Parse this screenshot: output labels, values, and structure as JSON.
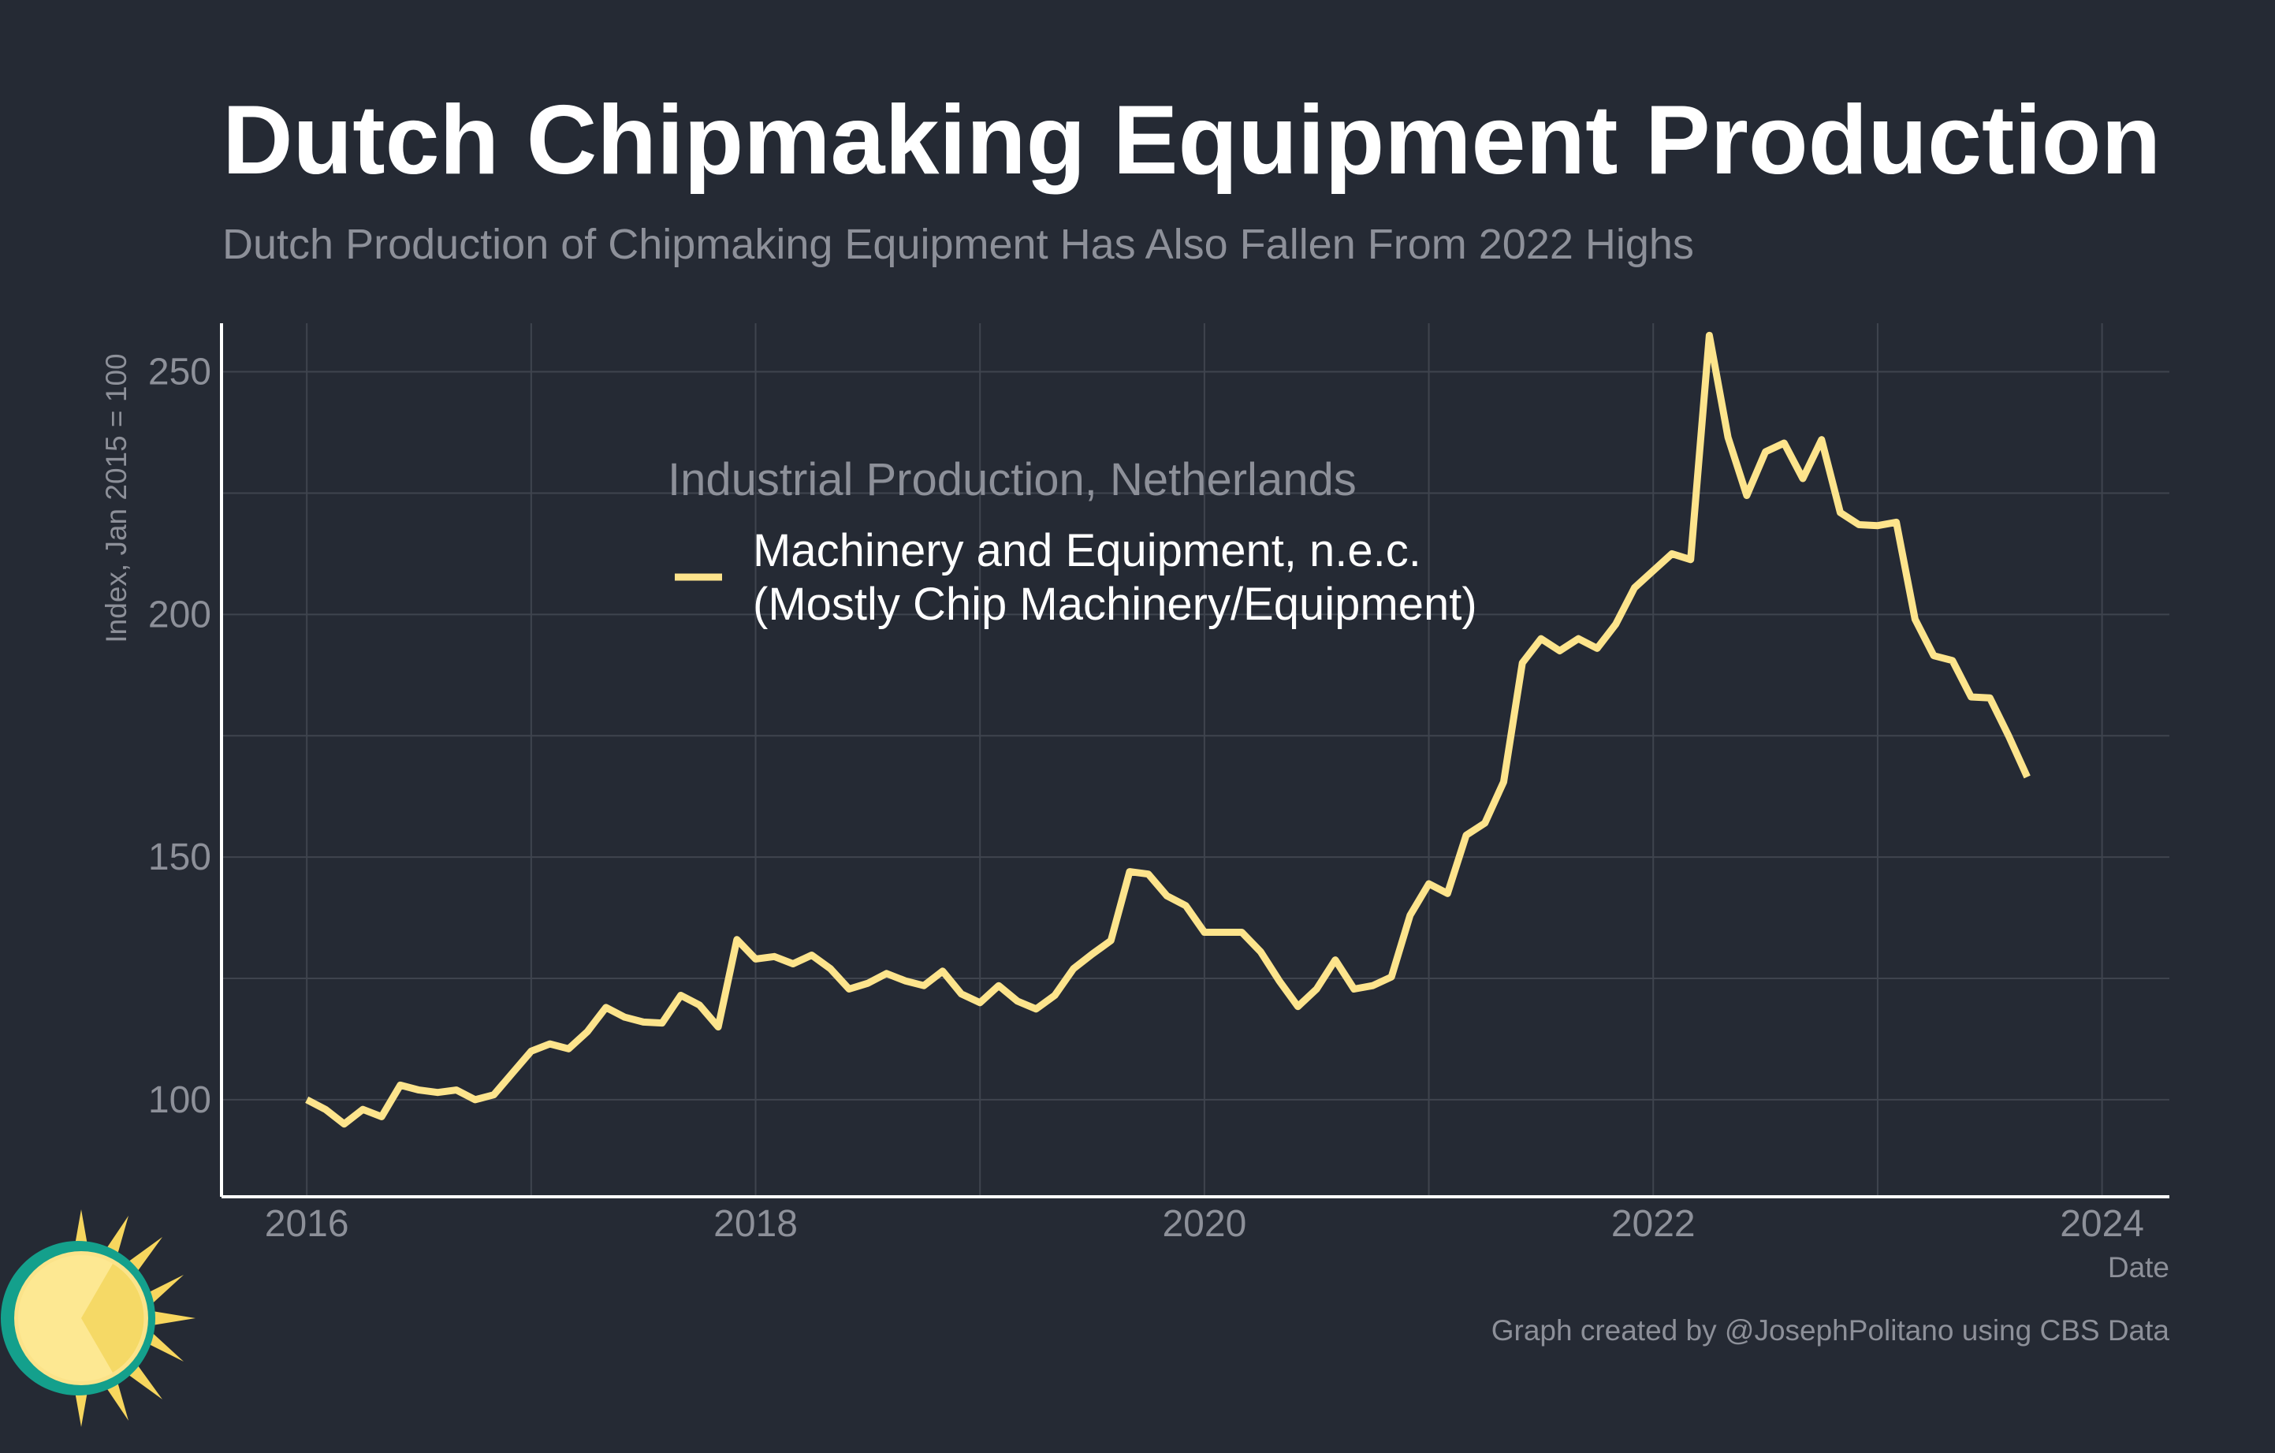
{
  "colors": {
    "background": "#252a34",
    "line": "#fde48c",
    "grid": "#3f444e",
    "axis": "#ffffff",
    "muted_text": "#8d9099",
    "logo_teal": "#14a08c",
    "logo_yellow": "#fde48c",
    "logo_ray": "#f7d65e"
  },
  "logo": {
    "name": "sun-logo-icon"
  },
  "chart_data": {
    "type": "line",
    "title": "Dutch Chipmaking Equipment Production",
    "subtitle": "Dutch Production of Chipmaking Equipment Has Also Fallen From 2022 Highs",
    "xlabel": "Date",
    "ylabel": "Index, Jan 2015 = 100",
    "xlim": [
      2015.62,
      2024.3
    ],
    "ylim": [
      80,
      260
    ],
    "xticks": [
      2016,
      2018,
      2020,
      2022,
      2024
    ],
    "yticks": [
      100,
      150,
      200,
      250
    ],
    "grid": true,
    "legend_title": "Industrial Production, Netherlands",
    "legend_position": "top-center",
    "caption": "Graph created by @JosephPolitano using CBS Data",
    "series": [
      {
        "name": "Machinery and Equipment, n.e.c.\n(Mostly Chip Machinery/Equipment)",
        "name_lines": [
          "Machinery and Equipment, n.e.c.",
          "(Mostly Chip Machinery/Equipment)"
        ],
        "x": [
          "2016-01",
          "2016-02",
          "2016-03",
          "2016-04",
          "2016-05",
          "2016-06",
          "2016-07",
          "2016-08",
          "2016-09",
          "2016-10",
          "2016-11",
          "2016-12",
          "2017-01",
          "2017-02",
          "2017-03",
          "2017-04",
          "2017-05",
          "2017-06",
          "2017-07",
          "2017-08",
          "2017-09",
          "2017-10",
          "2017-11",
          "2017-12",
          "2018-01",
          "2018-02",
          "2018-03",
          "2018-04",
          "2018-05",
          "2018-06",
          "2018-07",
          "2018-08",
          "2018-09",
          "2018-10",
          "2018-11",
          "2018-12",
          "2019-01",
          "2019-02",
          "2019-03",
          "2019-04",
          "2019-05",
          "2019-06",
          "2019-07",
          "2019-08",
          "2019-09",
          "2019-10",
          "2019-11",
          "2019-12",
          "2020-01",
          "2020-02",
          "2020-03",
          "2020-04",
          "2020-05",
          "2020-06",
          "2020-07",
          "2020-08",
          "2020-09",
          "2020-10",
          "2020-11",
          "2020-12",
          "2021-01",
          "2021-02",
          "2021-03",
          "2021-04",
          "2021-05",
          "2021-06",
          "2021-07",
          "2021-08",
          "2021-09",
          "2021-10",
          "2021-11",
          "2021-12",
          "2022-01",
          "2022-02",
          "2022-03",
          "2022-04",
          "2022-05",
          "2022-06",
          "2022-07",
          "2022-08",
          "2022-09",
          "2022-10",
          "2022-11",
          "2022-12",
          "2023-01",
          "2023-02",
          "2023-03",
          "2023-04",
          "2023-05",
          "2023-06",
          "2023-07",
          "2023-08",
          "2023-09"
        ],
        "values": [
          100,
          98,
          95,
          98,
          96.5,
          103,
          102,
          101.5,
          102,
          100,
          101,
          105.5,
          110,
          111.5,
          110.5,
          114,
          119,
          117,
          116,
          115.8,
          121.5,
          119.5,
          115,
          133,
          129,
          129.5,
          128,
          129.8,
          127,
          122.8,
          124,
          126,
          124.5,
          123.5,
          126.5,
          121.8,
          120,
          123.5,
          120.3,
          118.7,
          121.5,
          127,
          130,
          132.8,
          147,
          146.5,
          142,
          140,
          134.5,
          134.5,
          134.5,
          130.5,
          124.5,
          119.2,
          122.8,
          128.8,
          122.8,
          123.5,
          125.3,
          138,
          144.5,
          142.5,
          154.5,
          157,
          165.5,
          190,
          195,
          192.5,
          195,
          193,
          198,
          205.5,
          209,
          212.5,
          211.3,
          257.5,
          236.5,
          224.5,
          233.5,
          235.3,
          228,
          236,
          221,
          218.5,
          218.3,
          219,
          199,
          191.5,
          190.5,
          183,
          182.8,
          175,
          166.5
        ]
      }
    ]
  }
}
